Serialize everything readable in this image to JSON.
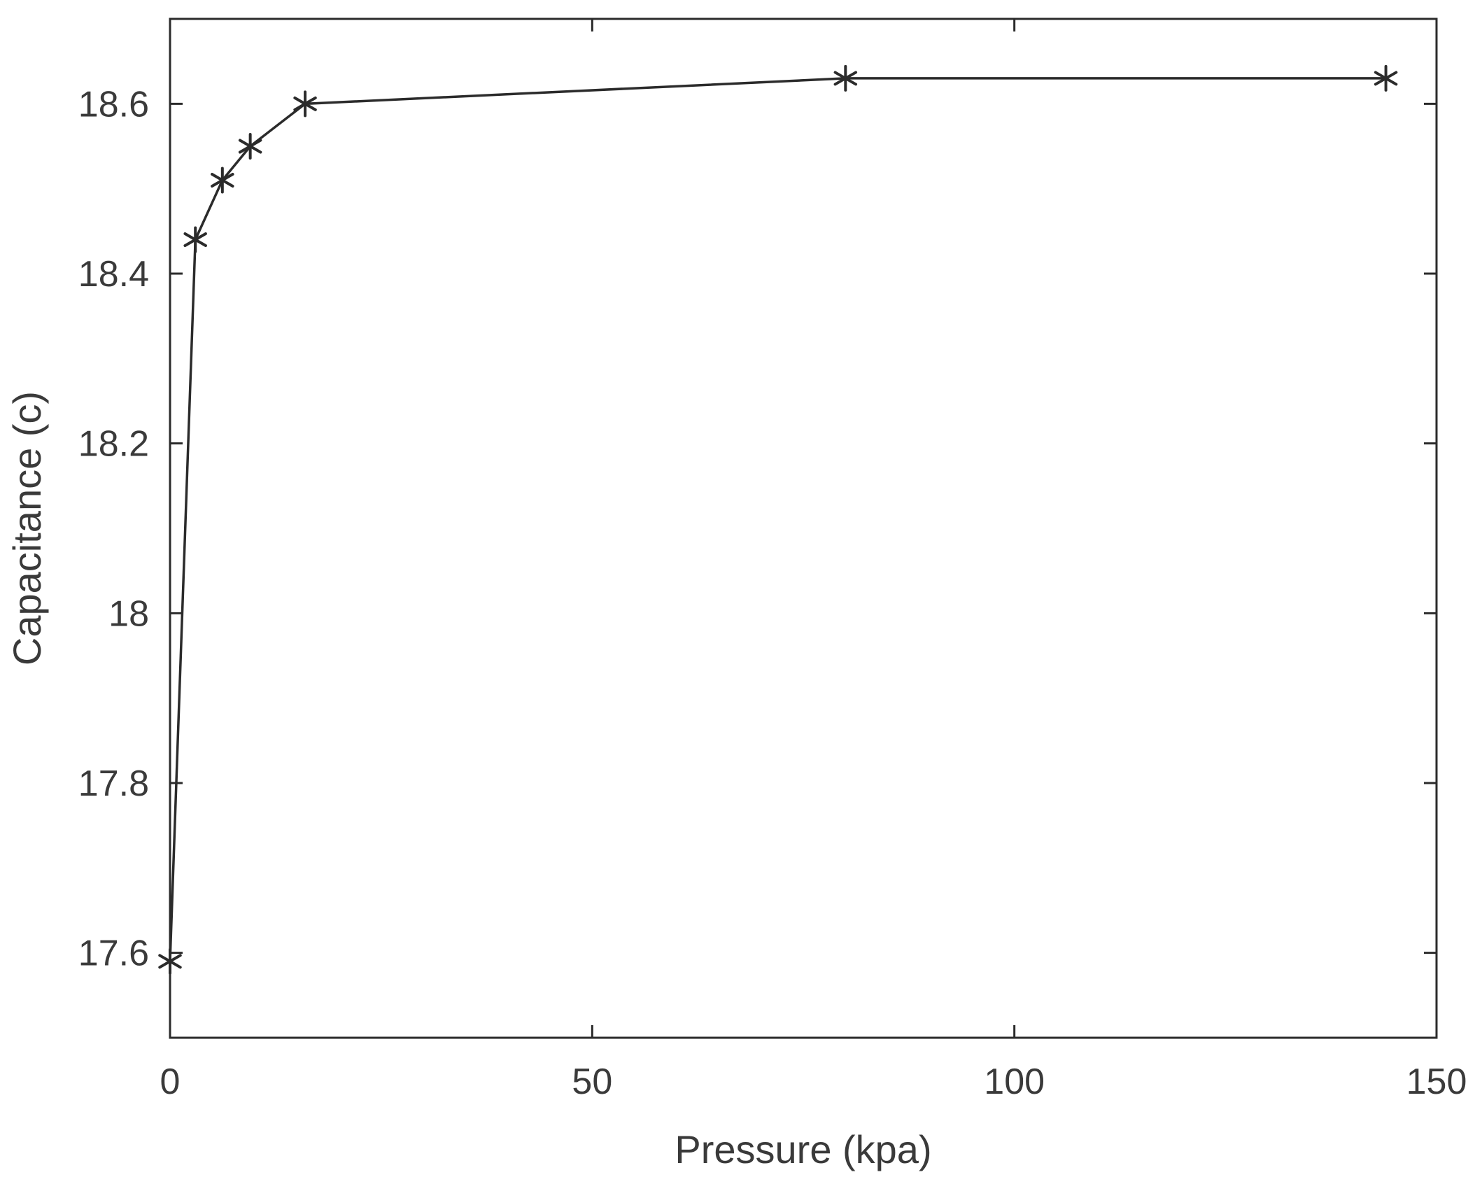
{
  "chart_data": {
    "type": "line",
    "title": "",
    "xlabel": "Pressure (kpa)",
    "ylabel": "Capacitance (c)",
    "xlim": [
      0,
      150
    ],
    "ylim": [
      17.5,
      18.7
    ],
    "xticks": [
      0,
      50,
      100,
      150
    ],
    "xtick_labels": [
      "0",
      "50",
      "100",
      "150"
    ],
    "yticks": [
      17.6,
      17.8,
      18.0,
      18.2,
      18.4,
      18.6
    ],
    "ytick_labels": [
      "17.6",
      "17.8",
      "18",
      "18.2",
      "18.4",
      "18.6"
    ],
    "grid": false,
    "legend": "none",
    "series": [
      {
        "marker": "asterisk",
        "color": "#2b2b2b",
        "x": [
          0,
          3,
          6.2,
          9.5,
          16,
          80,
          144
        ],
        "y": [
          17.59,
          18.44,
          18.51,
          18.55,
          18.6,
          18.63,
          18.63
        ]
      }
    ]
  }
}
